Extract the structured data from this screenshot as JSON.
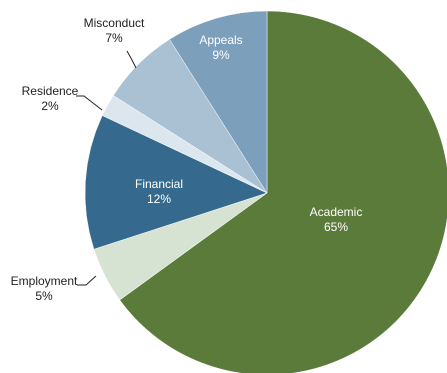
{
  "chart_data": {
    "type": "pie",
    "title": "",
    "unit": "%",
    "slices": [
      {
        "label": "Academic",
        "value": 65,
        "value_label": "65%",
        "color": "#5b7b3a",
        "label_position": "inside"
      },
      {
        "label": "Employment",
        "value": 5,
        "value_label": "5%",
        "color": "#d6e3d2",
        "label_position": "outside"
      },
      {
        "label": "Financial",
        "value": 12,
        "value_label": "12%",
        "color": "#356a8e",
        "label_position": "inside"
      },
      {
        "label": "Residence",
        "value": 2,
        "value_label": "2%",
        "color": "#dbe6ee",
        "label_position": "outside"
      },
      {
        "label": "Misconduct",
        "value": 7,
        "value_label": "7%",
        "color": "#a9c1d3",
        "label_position": "outside"
      },
      {
        "label": "Appeals",
        "value": 9,
        "value_label": "9%",
        "color": "#7c9fbb",
        "label_position": "inside"
      }
    ],
    "start_angle": "12 o'clock",
    "direction": "clockwise",
    "legend": "none"
  }
}
